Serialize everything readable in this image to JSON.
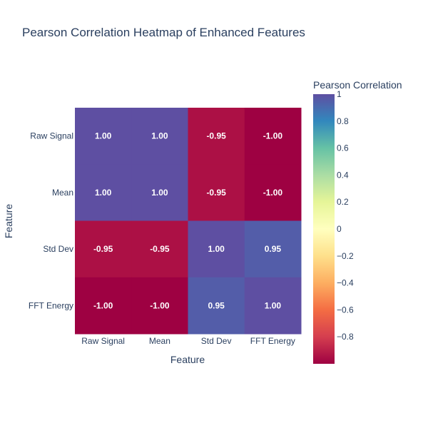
{
  "chart_data": {
    "type": "heatmap",
    "title": "Pearson Correlation Heatmap of Enhanced Features",
    "xlabel": "Feature",
    "ylabel": "Feature",
    "x_categories": [
      "Raw Signal",
      "Mean",
      "Std Dev",
      "FFT Energy"
    ],
    "y_categories": [
      "Raw Signal",
      "Mean",
      "Std Dev",
      "FFT Energy"
    ],
    "values": [
      [
        1.0,
        1.0,
        -0.95,
        -1.0
      ],
      [
        1.0,
        1.0,
        -0.95,
        -1.0
      ],
      [
        -0.95,
        -0.95,
        1.0,
        0.95
      ],
      [
        -1.0,
        -1.0,
        0.95,
        1.0
      ]
    ],
    "cell_labels": [
      [
        "1.00",
        "1.00",
        "-0.95",
        "-1.00"
      ],
      [
        "1.00",
        "1.00",
        "-0.95",
        "-1.00"
      ],
      [
        "-0.95",
        "-0.95",
        "1.00",
        "0.95"
      ],
      [
        "-1.00",
        "-1.00",
        "0.95",
        "1.00"
      ]
    ],
    "colorscale": "Spectral",
    "zlim": [
      -1,
      1
    ],
    "colorbar": {
      "title": "Pearson Correlation",
      "ticks": [
        1,
        0.8,
        0.6,
        0.4,
        0.2,
        0,
        -0.2,
        -0.4,
        -0.6,
        -0.8
      ],
      "tick_labels": [
        "1",
        "0.8",
        "0.6",
        "0.4",
        "0.2",
        "0",
        "−0.2",
        "−0.4",
        "−0.6",
        "−0.8"
      ]
    }
  }
}
